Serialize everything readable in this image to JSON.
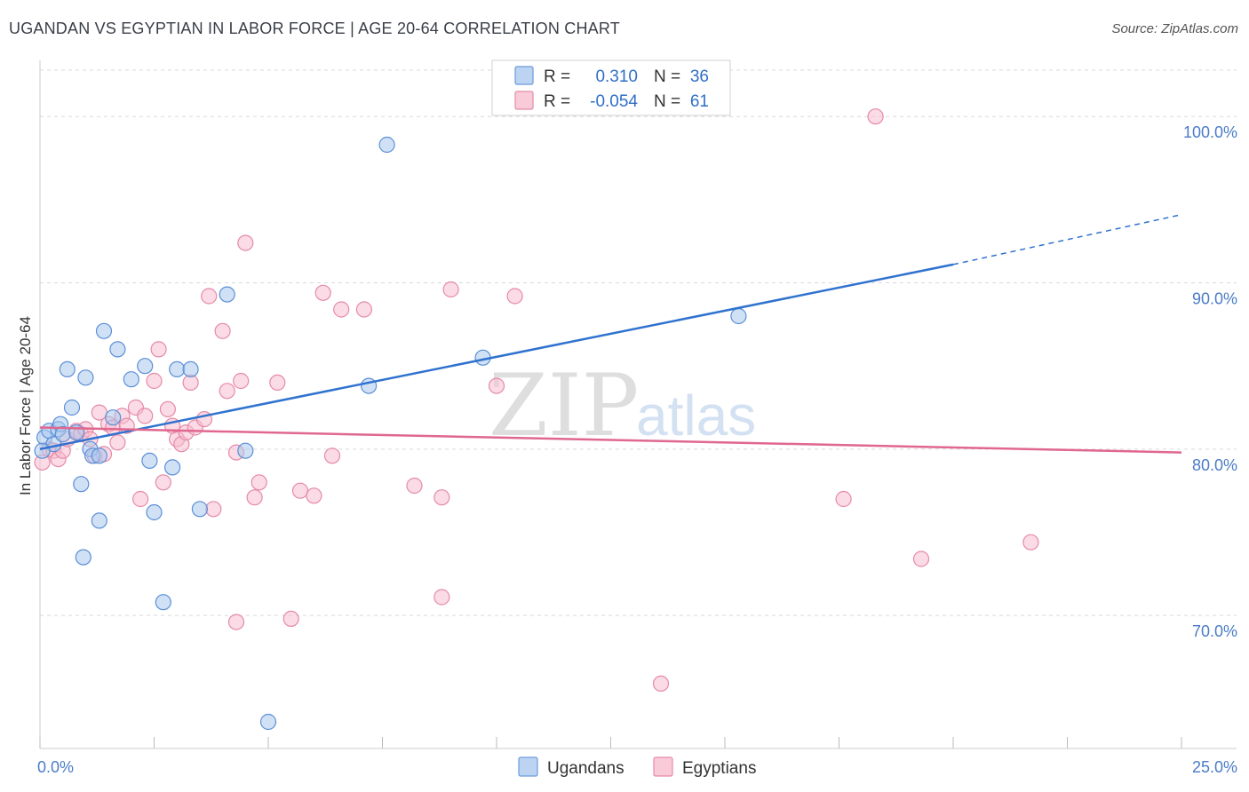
{
  "header": {
    "title": "UGANDAN VS EGYPTIAN IN LABOR FORCE | AGE 20-64 CORRELATION CHART",
    "source": "Source: ZipAtlas.com"
  },
  "watermark": {
    "zip": "ZIP",
    "atlas": "atlas"
  },
  "legend": {
    "rows": [
      {
        "r_label": "R =",
        "r_value": "0.310",
        "n_label": "N =",
        "n_value": "36"
      },
      {
        "r_label": "R =",
        "r_value": "-0.054",
        "n_label": "N =",
        "n_value": "61"
      }
    ]
  },
  "bottom_legend": {
    "ugandans": "Ugandans",
    "egyptians": "Egyptians"
  },
  "colors": {
    "ugandans_fill": "#aac8ee",
    "ugandans_stroke": "#5b8fd6",
    "ugandans_line": "#2f72cf",
    "egyptians_fill": "#f7bdd0",
    "egyptians_stroke": "#e58aa8",
    "egyptians_line": "#e0678f",
    "grid": "#d9d9d9",
    "tick_label": "#4a7cc7"
  },
  "chart_data": {
    "type": "scatter",
    "title": "UGANDAN VS EGYPTIAN IN LABOR FORCE | AGE 20-64 CORRELATION CHART",
    "xlabel": "",
    "ylabel": "In Labor Force | Age 20-64",
    "xlim": [
      0,
      25
    ],
    "ylim": [
      62,
      103
    ],
    "x_tick_labels": [
      {
        "value": 0,
        "label": "0.0%"
      },
      {
        "value": 25,
        "label": "25.0%"
      }
    ],
    "y_ticks": [
      {
        "value": 70,
        "label": "70.0%"
      },
      {
        "value": 80,
        "label": "80.0%"
      },
      {
        "value": 90,
        "label": "90.0%"
      },
      {
        "value": 100,
        "label": "100.0%"
      }
    ],
    "series": [
      {
        "name": "Ugandans",
        "r": 0.31,
        "n": 36,
        "trend": {
          "x0": 0,
          "y0": 80.0,
          "x1": 20,
          "y1": 91.1,
          "dashed_to_x": 25,
          "dashed_to_y": 94.1
        },
        "points": [
          [
            0.1,
            80.7
          ],
          [
            0.2,
            81.1
          ],
          [
            0.3,
            80.3
          ],
          [
            0.4,
            81.2
          ],
          [
            0.45,
            81.5
          ],
          [
            0.5,
            80.9
          ],
          [
            0.6,
            84.8
          ],
          [
            0.7,
            82.5
          ],
          [
            0.8,
            81.0
          ],
          [
            0.9,
            77.9
          ],
          [
            0.95,
            73.5
          ],
          [
            1.0,
            84.3
          ],
          [
            1.1,
            80.0
          ],
          [
            1.15,
            79.6
          ],
          [
            1.3,
            79.6
          ],
          [
            1.3,
            75.7
          ],
          [
            1.4,
            87.1
          ],
          [
            1.6,
            81.9
          ],
          [
            1.7,
            86.0
          ],
          [
            2.0,
            84.2
          ],
          [
            2.3,
            85.0
          ],
          [
            2.4,
            79.3
          ],
          [
            2.5,
            76.2
          ],
          [
            2.7,
            70.8
          ],
          [
            2.9,
            78.9
          ],
          [
            3.0,
            84.8
          ],
          [
            3.3,
            84.8
          ],
          [
            3.5,
            76.4
          ],
          [
            4.1,
            89.3
          ],
          [
            4.5,
            79.9
          ],
          [
            5.0,
            63.6
          ],
          [
            7.2,
            83.8
          ],
          [
            7.6,
            98.3
          ],
          [
            9.7,
            85.5
          ],
          [
            15.3,
            88.0
          ],
          [
            0.05,
            79.9
          ]
        ]
      },
      {
        "name": "Egyptians",
        "r": -0.054,
        "n": 61,
        "trend": {
          "x0": 0,
          "y0": 81.3,
          "x1": 25,
          "y1": 79.8
        },
        "points": [
          [
            0.05,
            79.2
          ],
          [
            0.2,
            80.0
          ],
          [
            0.3,
            79.9
          ],
          [
            0.4,
            79.4
          ],
          [
            0.5,
            79.9
          ],
          [
            0.6,
            80.6
          ],
          [
            0.8,
            81.1
          ],
          [
            0.9,
            80.9
          ],
          [
            1.0,
            81.2
          ],
          [
            1.1,
            80.6
          ],
          [
            1.2,
            79.6
          ],
          [
            1.3,
            82.2
          ],
          [
            1.4,
            79.7
          ],
          [
            1.5,
            81.5
          ],
          [
            1.6,
            81.3
          ],
          [
            1.7,
            80.4
          ],
          [
            1.8,
            82.0
          ],
          [
            1.9,
            81.4
          ],
          [
            2.1,
            82.5
          ],
          [
            2.2,
            77.0
          ],
          [
            2.3,
            82.0
          ],
          [
            2.5,
            84.1
          ],
          [
            2.6,
            86.0
          ],
          [
            2.7,
            78.0
          ],
          [
            2.8,
            82.4
          ],
          [
            2.9,
            81.4
          ],
          [
            3.0,
            80.6
          ],
          [
            3.1,
            80.3
          ],
          [
            3.2,
            81.0
          ],
          [
            3.3,
            84.0
          ],
          [
            3.4,
            81.3
          ],
          [
            3.6,
            81.8
          ],
          [
            3.7,
            89.2
          ],
          [
            3.8,
            76.4
          ],
          [
            4.0,
            87.1
          ],
          [
            4.1,
            83.5
          ],
          [
            4.3,
            79.8
          ],
          [
            4.3,
            69.6
          ],
          [
            4.4,
            84.1
          ],
          [
            4.5,
            92.4
          ],
          [
            4.7,
            77.1
          ],
          [
            4.8,
            78.0
          ],
          [
            5.2,
            84.0
          ],
          [
            5.5,
            69.8
          ],
          [
            5.7,
            77.5
          ],
          [
            6.0,
            77.2
          ],
          [
            6.2,
            89.4
          ],
          [
            6.4,
            79.6
          ],
          [
            6.6,
            88.4
          ],
          [
            7.1,
            88.4
          ],
          [
            8.2,
            77.8
          ],
          [
            8.8,
            77.1
          ],
          [
            8.8,
            71.1
          ],
          [
            9.0,
            89.6
          ],
          [
            10.0,
            83.8
          ],
          [
            10.4,
            89.2
          ],
          [
            13.6,
            65.9
          ],
          [
            17.6,
            77.0
          ],
          [
            18.3,
            100.0
          ],
          [
            19.3,
            73.4
          ],
          [
            21.7,
            74.4
          ]
        ]
      }
    ]
  }
}
